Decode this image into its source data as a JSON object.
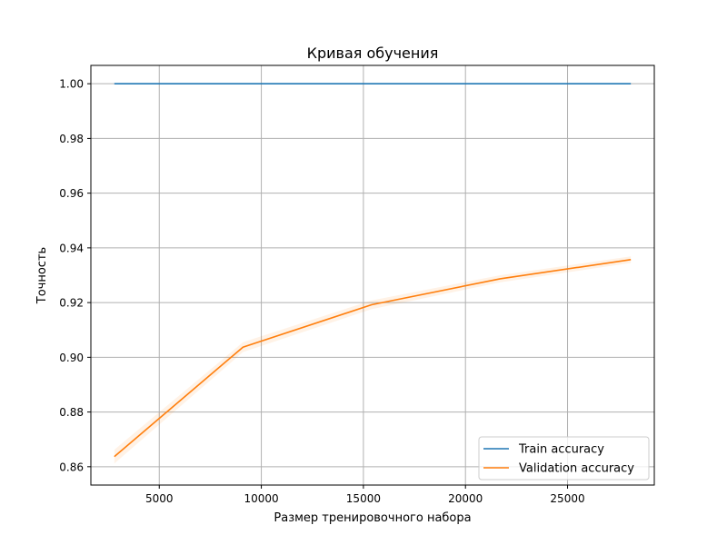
{
  "chart_data": {
    "type": "line",
    "title": "Кривая обучения",
    "xlabel": "Размер тренировочного набора",
    "ylabel": "Точность",
    "xlim": [
      1650,
      29250
    ],
    "ylim": [
      0.8533,
      1.0067
    ],
    "xticks": [
      5000,
      10000,
      15000,
      20000,
      25000
    ],
    "xtick_labels": [
      "5000",
      "10000",
      "15000",
      "20000",
      "25000"
    ],
    "yticks": [
      0.86,
      0.88,
      0.9,
      0.92,
      0.94,
      0.96,
      0.98,
      1.0
    ],
    "ytick_labels": [
      "0.86",
      "0.88",
      "0.90",
      "0.92",
      "0.94",
      "0.96",
      "0.98",
      "1.00"
    ],
    "grid": true,
    "legend_position": "lower-right",
    "x": [
      2800,
      9100,
      15400,
      21700,
      28100
    ],
    "series": [
      {
        "name": "Train accuracy",
        "color": "#1f77b4",
        "values": [
          1.0,
          1.0,
          1.0,
          1.0,
          1.0
        ],
        "std": [
          0,
          0,
          0,
          0,
          0
        ]
      },
      {
        "name": "Validation accuracy",
        "color": "#ff7f0e",
        "values": [
          0.8637,
          0.9037,
          0.9192,
          0.9287,
          0.9357
        ],
        "std": [
          0.0025,
          0.0018,
          0.0016,
          0.0013,
          0.0012
        ]
      }
    ]
  }
}
